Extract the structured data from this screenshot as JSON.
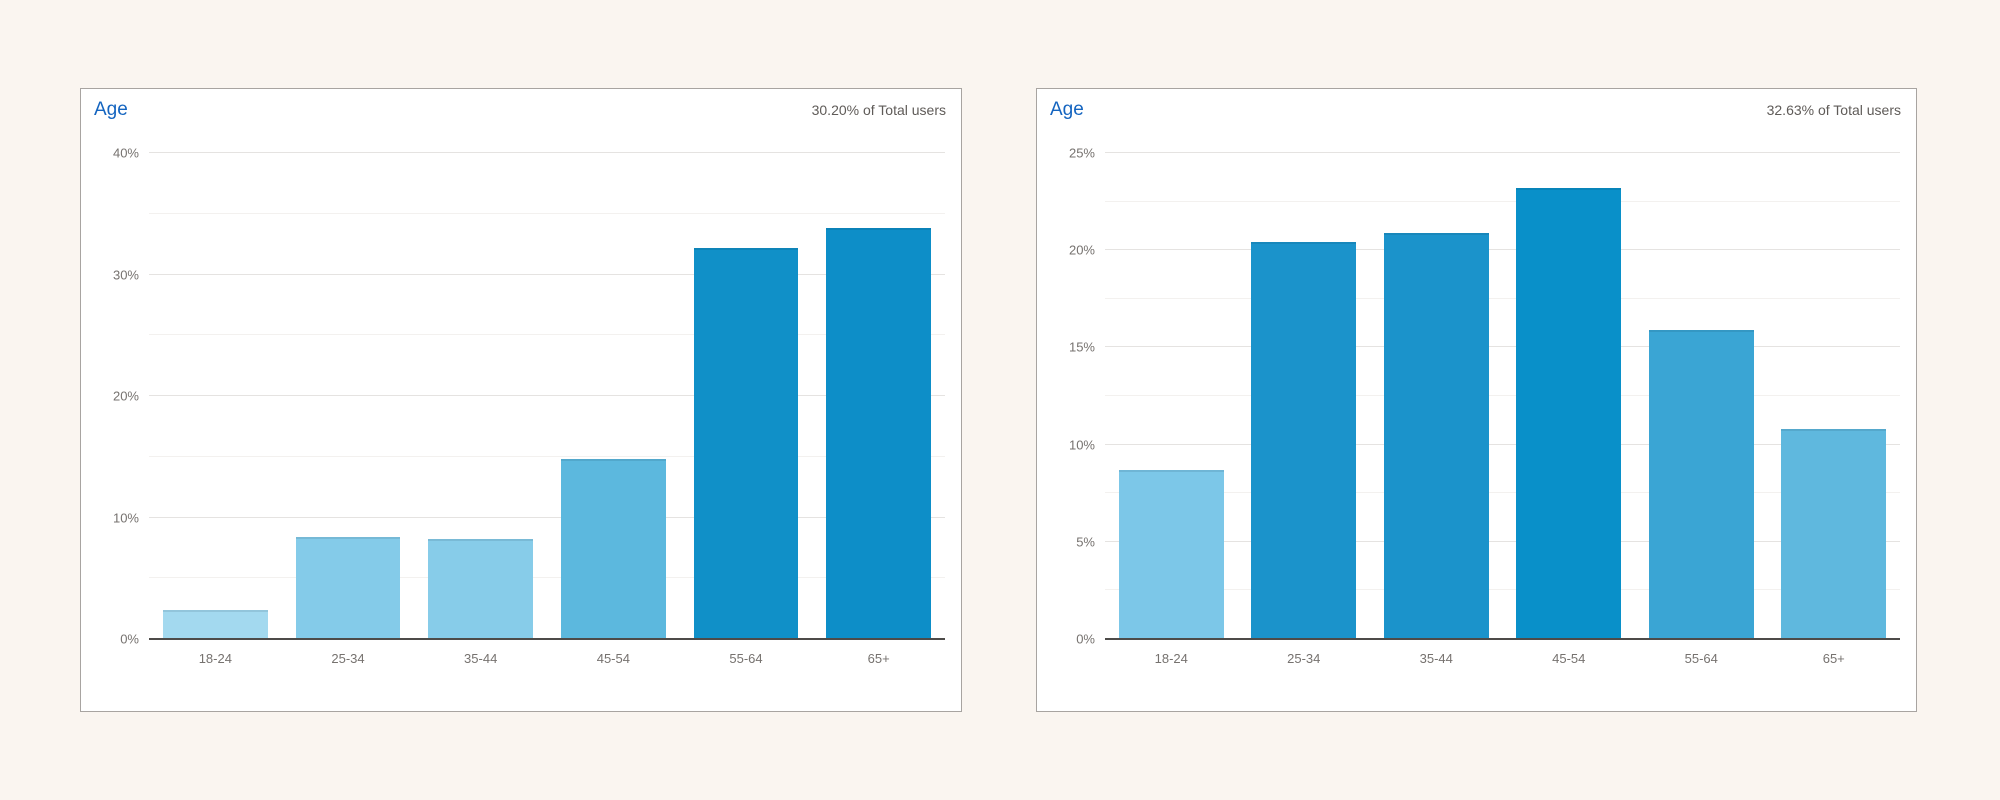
{
  "page": {
    "background_color": "#faf5f0"
  },
  "style": {
    "panel_background": "#ffffff",
    "panel_border_color": "#a8a4a1",
    "title_color": "#1565c0",
    "note_color": "#5f5b58",
    "tick_label_color": "#76726f",
    "major_grid_color": "#e5e3e1",
    "minor_grid_color": "#f3f1ef",
    "axis_line_color": "#4d4b49"
  },
  "chart_data": [
    {
      "type": "bar",
      "title": "Age",
      "header_note": "30.20% of Total users",
      "categories": [
        "18-24",
        "25-34",
        "35-44",
        "45-54",
        "55-64",
        "65+"
      ],
      "values": [
        2.4,
        8.4,
        8.2,
        14.8,
        32.2,
        33.8
      ],
      "bar_colors": [
        "#a3d9ef",
        "#84cbe9",
        "#87cce9",
        "#5cb8de",
        "#1090c8",
        "#0d8ec8"
      ],
      "xlabel": "",
      "ylabel": "",
      "ylim": [
        0,
        40
      ],
      "ytick_values": [
        0,
        10,
        20,
        30,
        40
      ],
      "ytick_labels": [
        "0%",
        "10%",
        "20%",
        "30%",
        "40%"
      ],
      "minor_tick_values": [
        5,
        15,
        25,
        35
      ],
      "grid": "horizontal",
      "legend": "none"
    },
    {
      "type": "bar",
      "title": "Age",
      "header_note": "32.63% of Total users",
      "categories": [
        "18-24",
        "25-34",
        "35-44",
        "45-54",
        "55-64",
        "65+"
      ],
      "values": [
        8.7,
        20.4,
        20.9,
        23.2,
        15.9,
        10.8
      ],
      "bar_colors": [
        "#7cc7e8",
        "#1b93cb",
        "#1b93cb",
        "#0990c9",
        "#3aa5d4",
        "#5fb8de"
      ],
      "xlabel": "",
      "ylabel": "",
      "ylim": [
        0,
        25
      ],
      "ytick_values": [
        0,
        5,
        10,
        15,
        20,
        25
      ],
      "ytick_labels": [
        "0%",
        "5%",
        "10%",
        "15%",
        "20%",
        "25%"
      ],
      "minor_tick_values": [
        2.5,
        7.5,
        12.5,
        17.5,
        22.5
      ],
      "grid": "horizontal",
      "legend": "none"
    }
  ]
}
